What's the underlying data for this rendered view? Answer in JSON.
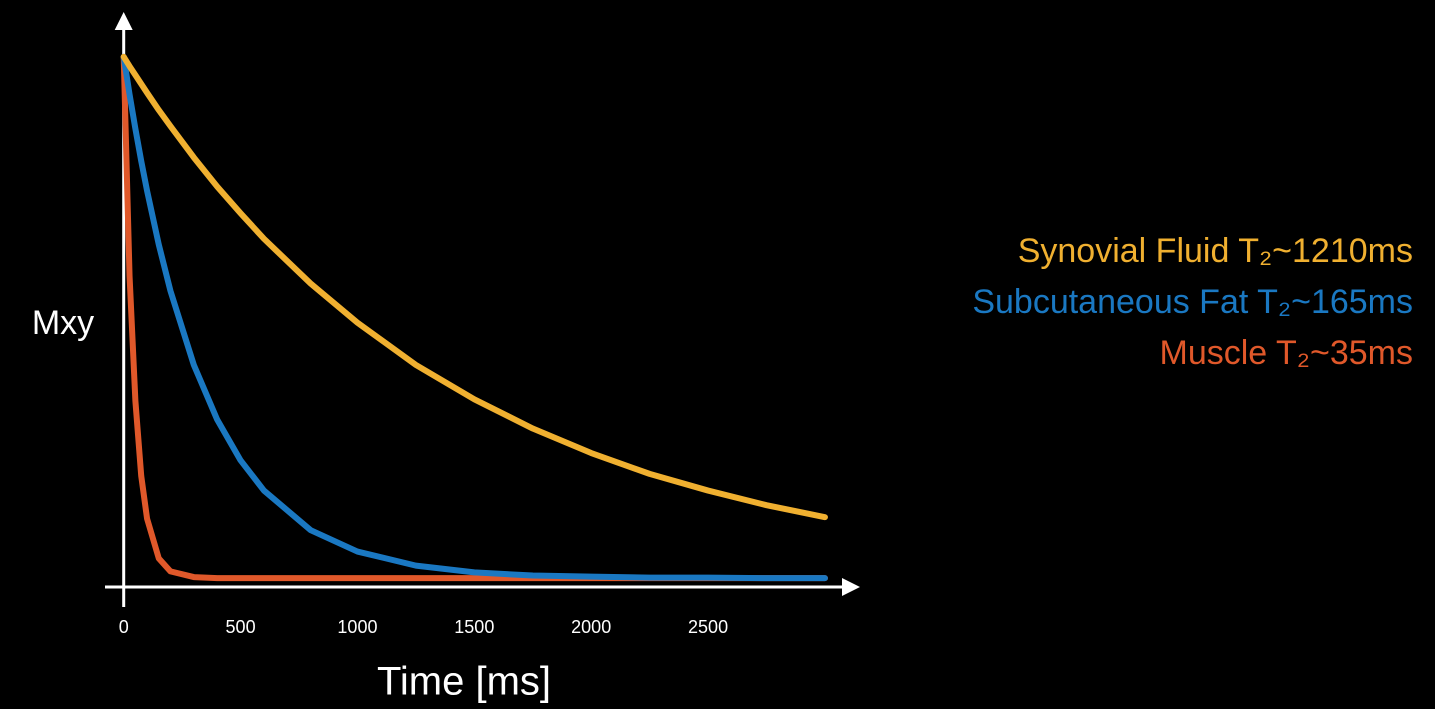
{
  "chart_data": {
    "type": "line",
    "x_label": "Time [ms]",
    "y_label": "Mxy",
    "x": [
      0,
      25,
      50,
      75,
      100,
      150,
      200,
      300,
      400,
      500,
      600,
      800,
      1000,
      1250,
      1500,
      1750,
      2000,
      2250,
      2500,
      2750,
      3000
    ],
    "series": [
      {
        "name": "Synovial Fluid T₂~1210ms",
        "color": "#f0b030",
        "values": [
          1,
          0.982,
          0.965,
          0.948,
          0.931,
          0.898,
          0.867,
          0.807,
          0.751,
          0.7,
          0.651,
          0.565,
          0.49,
          0.409,
          0.343,
          0.287,
          0.24,
          0.2,
          0.168,
          0.14,
          0.117
        ]
      },
      {
        "name": "Subcutaneous Fat T₂~165ms",
        "color": "#1a78c2",
        "values": [
          1,
          0.928,
          0.862,
          0.8,
          0.743,
          0.64,
          0.551,
          0.409,
          0.304,
          0.226,
          0.168,
          0.092,
          0.051,
          0.024,
          0.011,
          0.005,
          0.003,
          0.001,
          0.001,
          0,
          0
        ]
      },
      {
        "name": "Muscle T₂~35ms",
        "color": "#e0582a",
        "values": [
          1,
          0.58,
          0.34,
          0.196,
          0.114,
          0.038,
          0.013,
          0.002,
          0,
          0,
          0,
          0,
          0,
          0,
          0,
          0,
          0,
          0,
          0,
          0,
          0
        ]
      }
    ],
    "xlim": [
      -80,
      3150
    ],
    "xticks": [
      0,
      500,
      1000,
      1500,
      2000,
      2500
    ],
    "ylim": [
      -0.017,
      1.086
    ],
    "legend": "right"
  }
}
